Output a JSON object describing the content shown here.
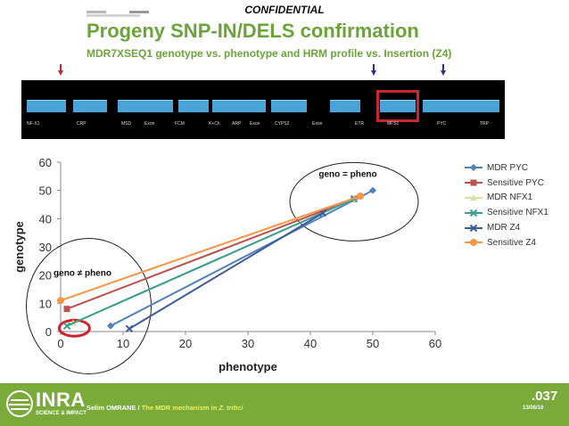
{
  "header": {
    "confidential": "CONFIDENTIAL",
    "title": "Progeny SNP-IN/DELS confirmation",
    "subtitle": "MDR7XSEQ1 genotype vs. phenotype and HRM profile vs. Insertion (Z4)"
  },
  "genome_map": {
    "labels": [
      "NF-X1",
      "CRP",
      "MSD",
      "Exon",
      "FCM",
      "K+Ch",
      "ARP",
      "Exon",
      "CYPS2",
      "Exon",
      "ETR",
      "MFS1",
      "PYC",
      "TRP"
    ],
    "highlight": "MFS1",
    "arrow_colors": {
      "red": "#c8282d",
      "blue": "#2b2f8f"
    }
  },
  "chart_data": {
    "type": "line",
    "xlabel": "phenotype",
    "ylabel": "genotype",
    "xlim": [
      0,
      60
    ],
    "ylim": [
      0,
      60
    ],
    "xticks": [
      0,
      10,
      20,
      30,
      40,
      50,
      60
    ],
    "yticks": [
      0,
      10,
      20,
      30,
      40,
      50,
      60
    ],
    "grid": false,
    "legend_position": "right",
    "series": [
      {
        "name": "MDR PYC",
        "color": "#4f81bd",
        "marker": "diamond",
        "x": [
          8,
          50
        ],
        "y": [
          2,
          50
        ]
      },
      {
        "name": "Sensitive PYC",
        "color": "#c0504d",
        "marker": "square",
        "x": [
          1,
          47
        ],
        "y": [
          8,
          47
        ]
      },
      {
        "name": "MDR NFX1",
        "color": "#d3e5a0",
        "marker": "triangle",
        "x": [
          2,
          47
        ],
        "y": [
          3,
          47
        ]
      },
      {
        "name": "Sensitive NFX1",
        "color": "#3a9e8f",
        "marker": "x",
        "x": [
          1,
          47
        ],
        "y": [
          2,
          47
        ]
      },
      {
        "name": "MDR Z4",
        "color": "#3c5a9a",
        "marker": "x",
        "x": [
          11,
          42
        ],
        "y": [
          1,
          42
        ]
      },
      {
        "name": "Sensitive Z4",
        "color": "#f79646",
        "marker": "circle",
        "x": [
          0,
          48
        ],
        "y": [
          11,
          48
        ]
      }
    ],
    "annotations": [
      {
        "text": "geno = pheno"
      },
      {
        "text": "geno ≠ pheno"
      }
    ]
  },
  "footer": {
    "logo_text": "INRA",
    "logo_tagline": "SCIENCE & IMPACT",
    "author": "Selim OMRANE / ",
    "talk_title": "The MDR mechanism in ",
    "species": "Z. tritici",
    "slide_number": ".037",
    "date": "13/06/10"
  }
}
